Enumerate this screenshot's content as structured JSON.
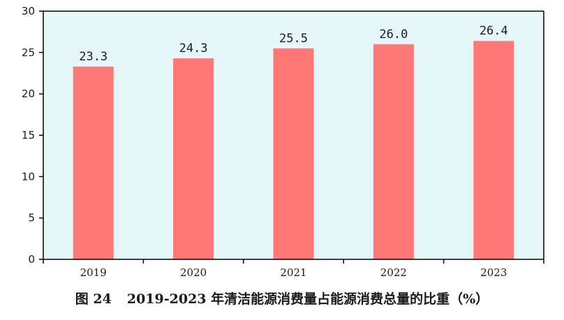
{
  "caption": {
    "figure_number": "图 24",
    "text": "2019-2023 年清洁能源消费量占能源消费总量的比重（%）"
  },
  "colors": {
    "bar": "#ff7777",
    "plot_background": "#e6f7f9",
    "axis": "#000000"
  },
  "chart_data": {
    "type": "bar",
    "categories": [
      "2019",
      "2020",
      "2021",
      "2022",
      "2023"
    ],
    "values": [
      23.3,
      24.3,
      25.5,
      26.0,
      26.4
    ],
    "value_labels": [
      "23.3",
      "24.3",
      "25.5",
      "26.0",
      "26.4"
    ],
    "ylim": [
      0,
      30
    ],
    "yticks": [
      0,
      5,
      10,
      15,
      20,
      25,
      30
    ],
    "grid": false,
    "legend": "none"
  }
}
